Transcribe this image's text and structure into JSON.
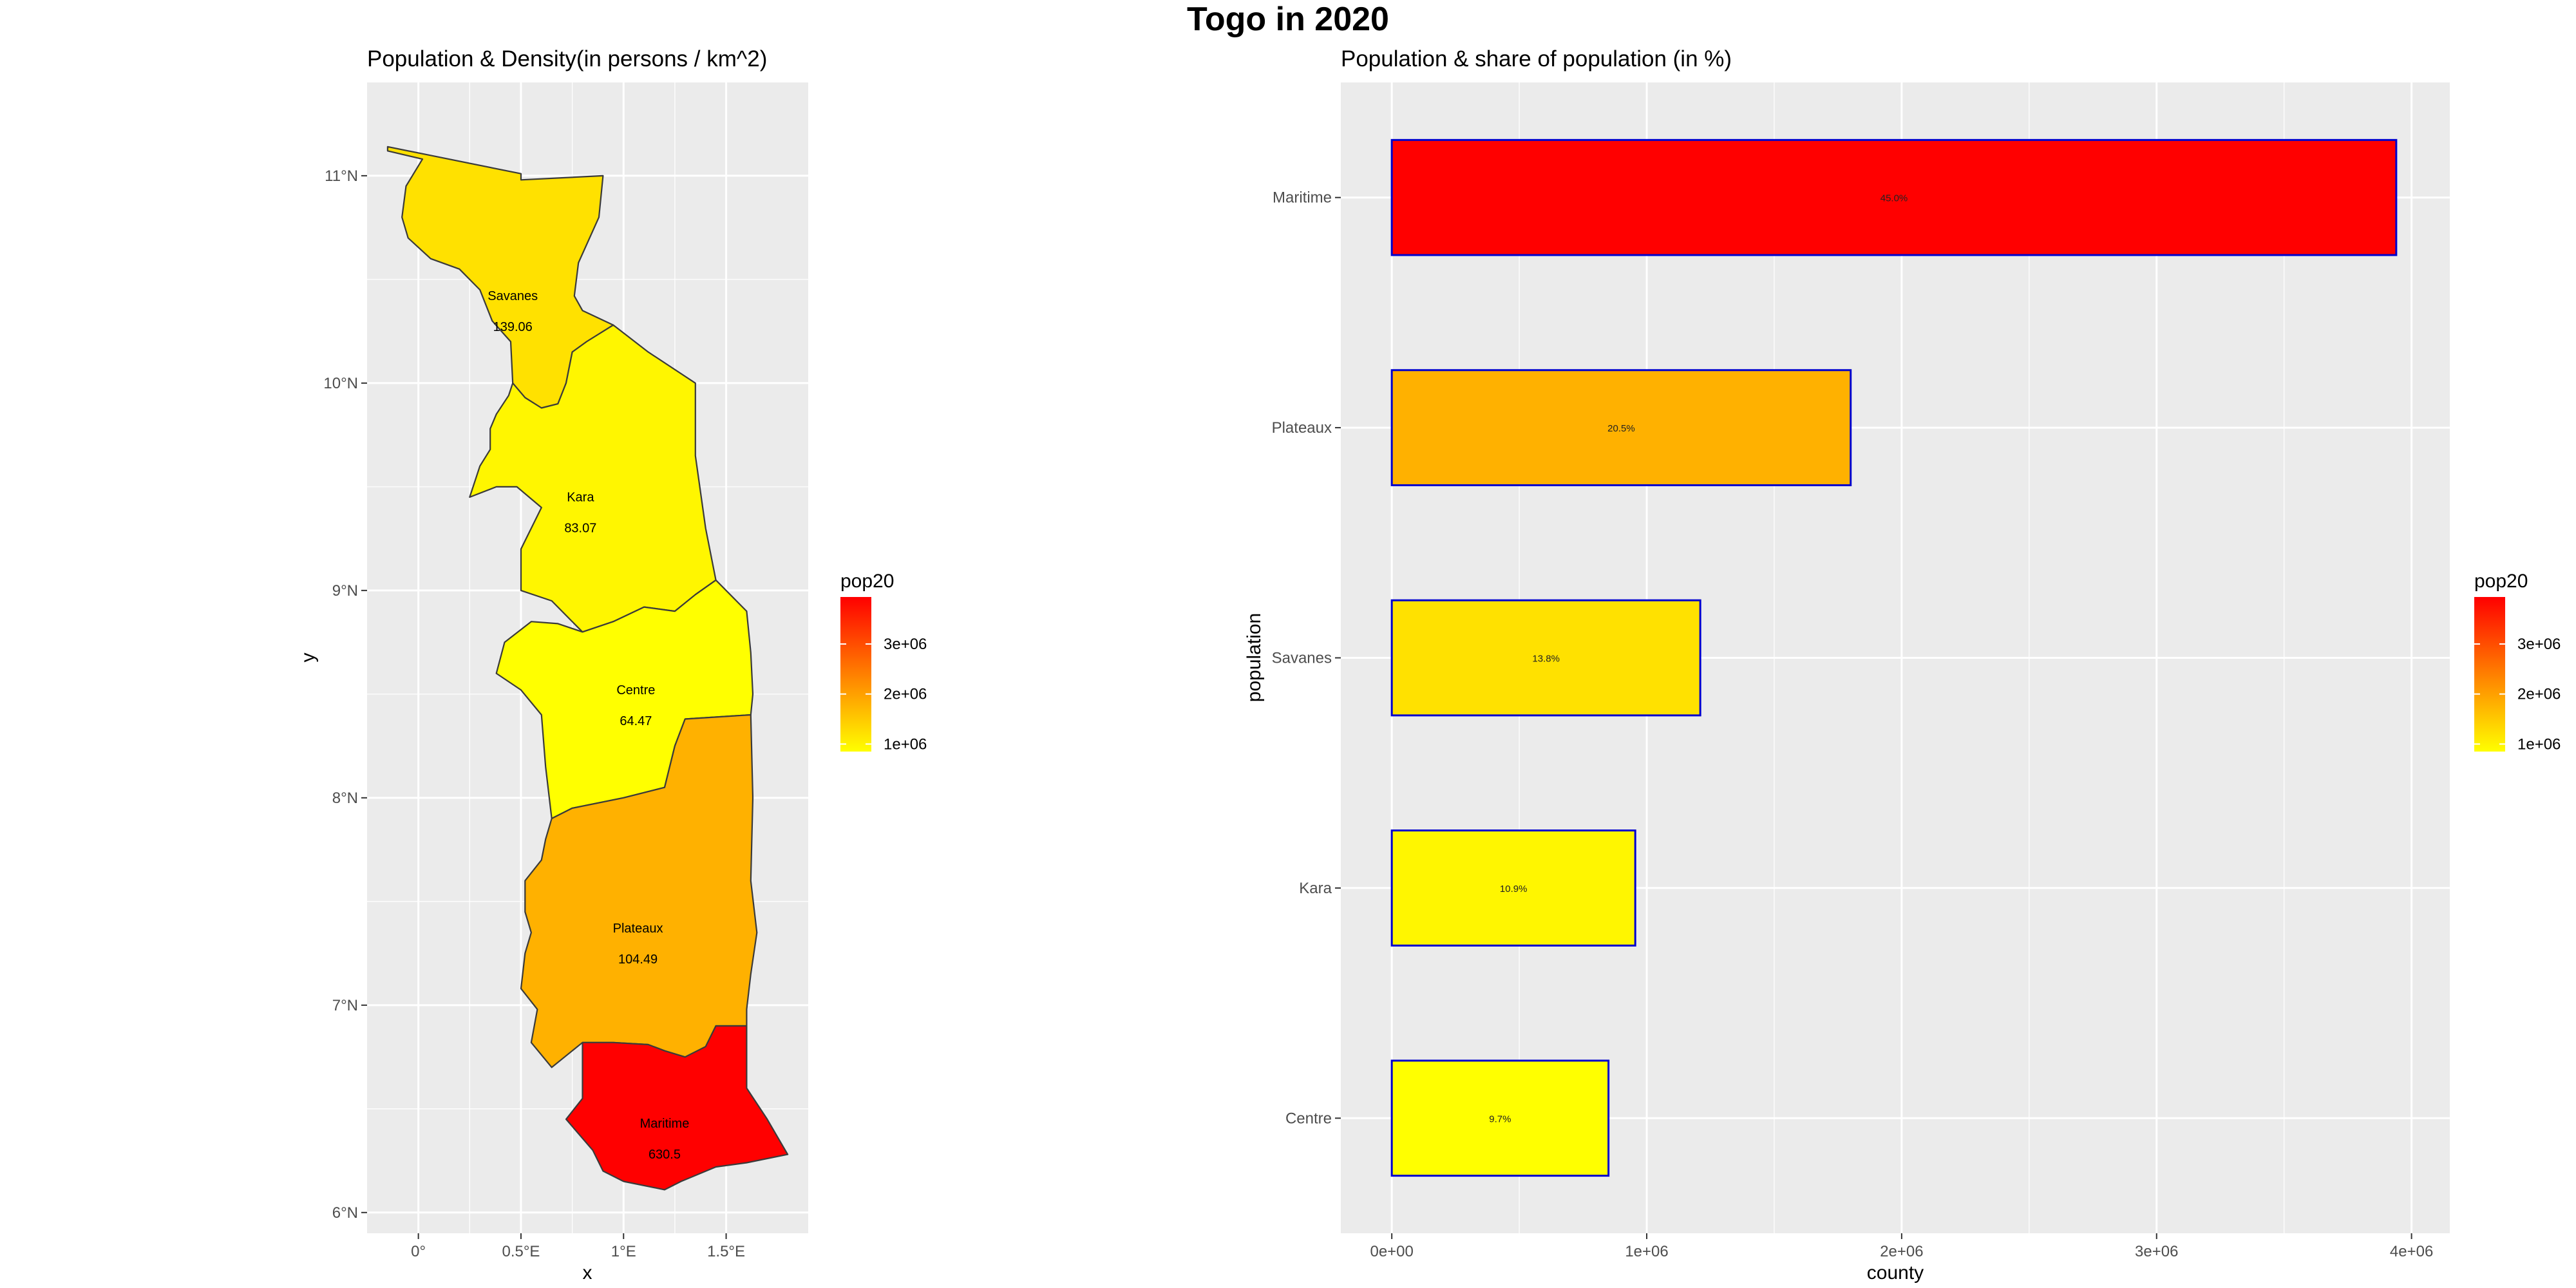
{
  "figure": {
    "title": "Togo in 2020"
  },
  "colors": {
    "panel": "#EBEBEB",
    "grid": "#FFFFFF",
    "scale_low": "#FFFF00",
    "scale_high": "#FF0000",
    "region_border": "#3A3A3A",
    "bar_border": "#0000CD",
    "axis_text": "#4D4D4D"
  },
  "chart_data": [
    {
      "type": "map",
      "title": "Population & Density(in persons / km^2)",
      "xlabel": "x",
      "ylabel": "y",
      "xlim": [
        -0.25,
        1.9
      ],
      "ylim": [
        5.9,
        11.45
      ],
      "x_ticks": [
        {
          "value": 0,
          "label": "0°"
        },
        {
          "value": 0.5,
          "label": "0.5°E"
        },
        {
          "value": 1.0,
          "label": "1°E"
        },
        {
          "value": 1.5,
          "label": "1.5°E"
        }
      ],
      "y_ticks": [
        {
          "value": 6,
          "label": "6°N"
        },
        {
          "value": 7,
          "label": "7°N"
        },
        {
          "value": 8,
          "label": "8°N"
        },
        {
          "value": 9,
          "label": "9°N"
        },
        {
          "value": 10,
          "label": "10°N"
        },
        {
          "value": 11,
          "label": "11°N"
        }
      ],
      "regions": [
        {
          "name": "Savanes",
          "density": "139.06",
          "pop20": 1210000,
          "label_lon": 0.46,
          "label_lat": 10.4
        },
        {
          "name": "Kara",
          "density": "83.07",
          "pop20": 955000,
          "label_lon": 0.79,
          "label_lat": 9.43
        },
        {
          "name": "Centre",
          "density": "64.47",
          "pop20": 850000,
          "label_lon": 1.06,
          "label_lat": 8.5
        },
        {
          "name": "Plateaux",
          "density": "104.49",
          "pop20": 1800000,
          "label_lon": 1.07,
          "label_lat": 7.35
        },
        {
          "name": "Maritime",
          "density": "630.5",
          "pop20": 3940000,
          "label_lon": 1.2,
          "label_lat": 6.41
        }
      ],
      "legend": {
        "title": "pop20",
        "position": "right",
        "min": 850000,
        "max": 3940000,
        "ticks": [
          {
            "value": 1000000,
            "label": "1e+06"
          },
          {
            "value": 2000000,
            "label": "2e+06"
          },
          {
            "value": 3000000,
            "label": "3e+06"
          }
        ]
      }
    },
    {
      "type": "bar",
      "orientation": "horizontal",
      "title": "Population & share of population (in %)",
      "xlabel": "county",
      "ylabel": "population",
      "xlim": [
        -200000,
        4150000
      ],
      "x_ticks": [
        {
          "value": 0,
          "label": "0e+00"
        },
        {
          "value": 1000000,
          "label": "1e+06"
        },
        {
          "value": 2000000,
          "label": "2e+06"
        },
        {
          "value": 3000000,
          "label": "3e+06"
        },
        {
          "value": 4000000,
          "label": "4e+06"
        }
      ],
      "categories": [
        "Centre",
        "Kara",
        "Savanes",
        "Plateaux",
        "Maritime"
      ],
      "values": [
        850000,
        955000,
        1210000,
        1800000,
        3940000
      ],
      "labels": [
        "9.7%",
        "10.9%",
        "13.8%",
        "20.5%",
        "45.0%"
      ],
      "legend": {
        "title": "pop20",
        "position": "right",
        "min": 850000,
        "max": 3940000,
        "ticks": [
          {
            "value": 1000000,
            "label": "1e+06"
          },
          {
            "value": 2000000,
            "label": "2e+06"
          },
          {
            "value": 3000000,
            "label": "3e+06"
          }
        ]
      }
    }
  ]
}
